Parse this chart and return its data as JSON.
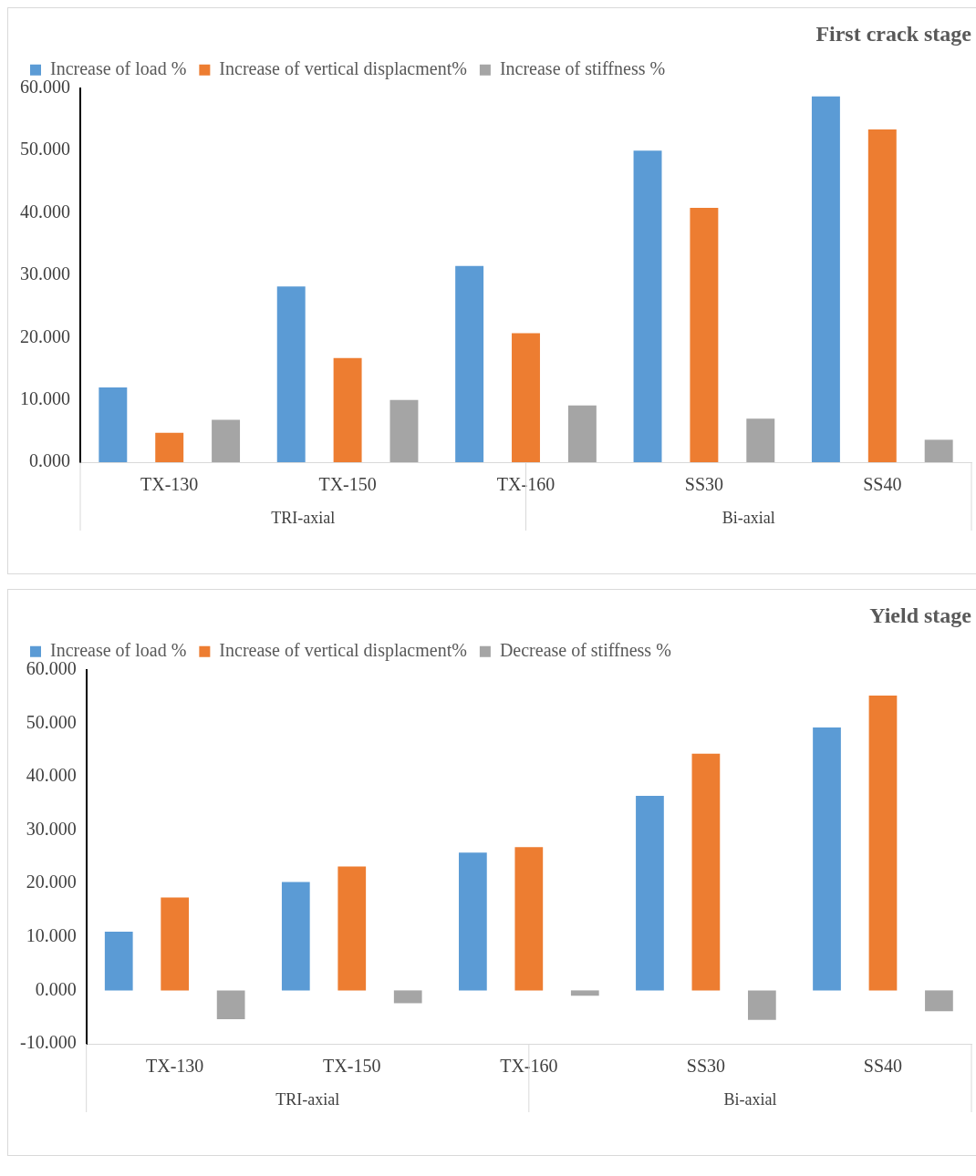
{
  "chart_data": [
    {
      "type": "bar",
      "title": "First crack stage",
      "categories": [
        "TX-130",
        "TX-150",
        "TX-160",
        "SS30",
        "SS40"
      ],
      "series": [
        {
          "name": "Increase of load %",
          "color": "#5b9bd5",
          "values": [
            12.0,
            28.2,
            31.5,
            50.0,
            58.7
          ]
        },
        {
          "name": "Increase of vertical displacment%",
          "color": "#ed7d31",
          "values": [
            4.7,
            16.7,
            20.7,
            40.8,
            53.4
          ]
        },
        {
          "name": "Increase of stiffness %",
          "color": "#a5a5a5",
          "values": [
            6.8,
            10.0,
            9.1,
            7.0,
            3.6
          ]
        }
      ],
      "ylim": [
        0,
        60
      ],
      "yticks": [
        {
          "value": 0,
          "label": "0.000"
        },
        {
          "value": 10,
          "label": "10.000"
        },
        {
          "value": 20,
          "label": "20.000"
        },
        {
          "value": 30,
          "label": "30.000"
        },
        {
          "value": 40,
          "label": "40.000"
        },
        {
          "value": 50,
          "label": "50.000"
        },
        {
          "value": 60,
          "label": "60.000"
        }
      ],
      "grid": false,
      "legend": "top left",
      "annotations": [
        "TRI-axial",
        "Bi-axial"
      ]
    },
    {
      "type": "bar",
      "title": "Yield stage",
      "categories": [
        "TX-130",
        "TX-150",
        "TX-160",
        "SS30",
        "SS40"
      ],
      "series": [
        {
          "name": "Increase of load %",
          "color": "#5b9bd5",
          "values": [
            11.0,
            20.3,
            25.8,
            36.4,
            49.2
          ]
        },
        {
          "name": "Increase of vertical displacment%",
          "color": "#ed7d31",
          "values": [
            17.4,
            23.2,
            26.8,
            44.3,
            55.2
          ]
        },
        {
          "name": "Decrease of stiffness %",
          "color": "#a5a5a5",
          "values": [
            -5.4,
            -2.4,
            -1.0,
            -5.5,
            -3.9
          ]
        }
      ],
      "ylim": [
        -10,
        60
      ],
      "yticks": [
        {
          "value": -10,
          "label": "-10.000"
        },
        {
          "value": 0,
          "label": "0.000"
        },
        {
          "value": 10,
          "label": "10.000"
        },
        {
          "value": 20,
          "label": "20.000"
        },
        {
          "value": 30,
          "label": "30.000"
        },
        {
          "value": 40,
          "label": "40.000"
        },
        {
          "value": 50,
          "label": "50.000"
        },
        {
          "value": 60,
          "label": "60.000"
        }
      ],
      "grid": false,
      "legend": "top left",
      "annotations": [
        "TRI-axial",
        "Bi-axial"
      ]
    }
  ]
}
